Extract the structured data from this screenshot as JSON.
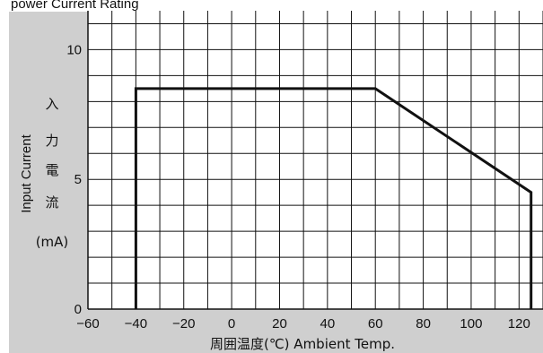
{
  "header_text": "power Current Rating",
  "chart_data": {
    "type": "line",
    "title": "",
    "xlabel": "周囲温度(℃) Ambient Temp.",
    "ylabel": "Input Current",
    "ylabel_jp": [
      "入",
      "力",
      "電",
      "流"
    ],
    "ylabel_unit": "(mA)",
    "xlim": [
      -60,
      130
    ],
    "ylim": [
      0,
      11.5
    ],
    "x_ticks": [
      -60,
      -40,
      -20,
      0,
      20,
      40,
      60,
      80,
      100,
      120
    ],
    "x_tick_labels": [
      "−60",
      "−40",
      "−20",
      "0",
      "20",
      "40",
      "60",
      "80",
      "100",
      "120"
    ],
    "y_ticks": [
      0,
      5,
      10
    ],
    "y_tick_labels": [
      "0",
      "5",
      "10"
    ],
    "grid": true,
    "grid_x_step": 10,
    "grid_y_step": 1,
    "colors": {
      "panel_bg": "#cfcfcf",
      "plot_bg": "#ffffff",
      "grid": "#111111",
      "line": "#111111"
    },
    "series": [
      {
        "x": [
          -40,
          -40,
          60,
          125,
          125
        ],
        "y": [
          0,
          8.5,
          8.5,
          4.5,
          0
        ]
      }
    ]
  }
}
